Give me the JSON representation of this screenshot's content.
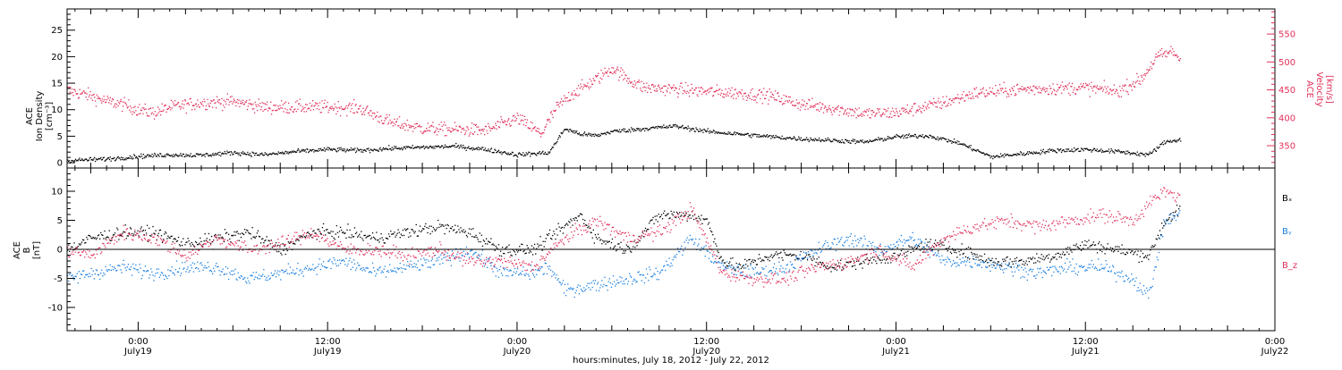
{
  "colors": {
    "black": "#000000",
    "red": "#e0305a",
    "blue": "#1a7fe0"
  },
  "x_axis": {
    "label": "hours:minutes, July 18, 2012 - July 22, 2012",
    "range_hours": [
      -4.5,
      72
    ],
    "ticks": [
      {
        "hours": 0,
        "time": "0:00",
        "date": "July19"
      },
      {
        "hours": 12,
        "time": "12:00",
        "date": "July19"
      },
      {
        "hours": 24,
        "time": "0:00",
        "date": "July20"
      },
      {
        "hours": 36,
        "time": "12:00",
        "date": "July20"
      },
      {
        "hours": 48,
        "time": "0:00",
        "date": "July21"
      },
      {
        "hours": 60,
        "time": "12:00",
        "date": "July21"
      },
      {
        "hours": 72,
        "time": "0:00",
        "date": "July22"
      }
    ]
  },
  "chart_data": [
    {
      "type": "scatter",
      "panel": "top",
      "left_axis": {
        "label_lines": [
          "ACE",
          "Ion Density",
          "[cm⁻³]"
        ],
        "range": [
          -1,
          29
        ],
        "ticks": [
          "0",
          "5",
          "10",
          "15",
          "20",
          "25"
        ]
      },
      "right_axis": {
        "label_lines": [
          "ACE",
          "Velocity",
          "[km/s]"
        ],
        "range": [
          310,
          595
        ],
        "ticks": [
          "350",
          "400",
          "450",
          "500",
          "550"
        ]
      },
      "series": [
        {
          "axis": "left",
          "color": "#000000",
          "x": [
            -4.5,
            -2,
            0,
            2,
            4,
            6,
            8,
            10,
            12,
            14,
            16,
            18,
            20,
            22,
            24,
            26,
            27,
            28,
            29,
            30,
            32,
            34,
            36,
            38,
            40,
            42,
            44,
            46,
            48,
            50,
            51,
            52,
            54,
            56,
            58,
            60,
            62,
            64,
            65,
            66
          ],
          "y": [
            0.5,
            0.8,
            1.3,
            1.6,
            1.5,
            2.0,
            1.6,
            2.2,
            2.6,
            2.4,
            2.8,
            3.0,
            3.2,
            2.6,
            1.6,
            2.0,
            6.5,
            5.5,
            5.2,
            6.0,
            6.5,
            7.0,
            6.0,
            5.5,
            5.0,
            4.6,
            4.3,
            4.0,
            5.0,
            5.2,
            4.5,
            3.8,
            1.2,
            1.8,
            2.4,
            2.6,
            2.2,
            1.6,
            4.0,
            4.5
          ]
        },
        {
          "axis": "right",
          "color": "#e0305a",
          "x": [
            -4.5,
            -3,
            -2,
            -1,
            0,
            1,
            2,
            4,
            6,
            8,
            10,
            12,
            14,
            16,
            18,
            20,
            22,
            24,
            25.5,
            26.5,
            27.5,
            29,
            30,
            31,
            32,
            34,
            36,
            38,
            40,
            42,
            44,
            46,
            48,
            50,
            51,
            53,
            56,
            60,
            62,
            63.5,
            64.5,
            65.5,
            66
          ],
          "y": [
            450,
            440,
            430,
            425,
            415,
            410,
            420,
            428,
            430,
            420,
            420,
            420,
            418,
            392,
            382,
            380,
            378,
            400,
            372,
            420,
            445,
            470,
            490,
            470,
            455,
            452,
            448,
            445,
            440,
            425,
            418,
            408,
            410,
            422,
            428,
            445,
            452,
            455,
            448,
            470,
            510,
            520,
            505
          ]
        }
      ]
    },
    {
      "type": "scatter",
      "panel": "bottom",
      "left_axis": {
        "label_lines": [
          "ACE",
          "B",
          "[nT]"
        ],
        "range": [
          -14,
          14
        ],
        "ticks": [
          "-10",
          "-5",
          "0",
          "5",
          "10"
        ]
      },
      "legend": [
        "Bₓ",
        "Bᵧ",
        "B_z"
      ],
      "series": [
        {
          "name": "Bₓ",
          "color": "#000000",
          "x": [
            -4.5,
            -3,
            -1,
            1,
            3,
            5,
            7,
            9,
            11,
            13,
            15,
            17,
            19,
            21,
            23,
            25,
            27,
            28,
            29,
            31,
            33,
            35,
            36,
            37,
            38,
            40,
            42,
            44,
            46,
            48,
            50,
            52,
            54,
            56,
            58,
            60,
            62,
            64,
            65,
            66
          ],
          "y": [
            0,
            2,
            3,
            3,
            1,
            2,
            3,
            0,
            3,
            3,
            2,
            3,
            4,
            3,
            0,
            0,
            4,
            6,
            2,
            0,
            6,
            6,
            5,
            -2,
            -3,
            -1,
            -1,
            -3,
            -2,
            -1,
            1,
            0,
            -2,
            -2,
            -1,
            1,
            0,
            -1,
            5,
            7
          ]
        },
        {
          "name": "Bᵧ",
          "color": "#1a7fe0",
          "x": [
            -4.5,
            -3,
            -1,
            1,
            3,
            5,
            7,
            9,
            11,
            13,
            15,
            17,
            19,
            21,
            23,
            25,
            26,
            27,
            29,
            31,
            33,
            35,
            37,
            39,
            41,
            43,
            45,
            47,
            49,
            51,
            53,
            55,
            57,
            59,
            61,
            63,
            64,
            65,
            66
          ],
          "y": [
            -5,
            -4,
            -3,
            -4,
            -3,
            -3,
            -5,
            -4,
            -3,
            -2,
            -4,
            -3,
            -2,
            0,
            -4,
            -4,
            -3,
            -7,
            -6,
            -5,
            -4,
            2,
            -3,
            -4,
            -3,
            0,
            2,
            0,
            2,
            -2,
            -2,
            -3,
            -4,
            -3,
            -3,
            -5,
            -8,
            5,
            6
          ]
        },
        {
          "name": "B_z",
          "color": "#e0305a",
          "x": [
            -4.5,
            -3,
            -1,
            1,
            3,
            5,
            7,
            9,
            11,
            13,
            15,
            17,
            19,
            21,
            23,
            25,
            27,
            29,
            31,
            33,
            35,
            37,
            39,
            41,
            43,
            45,
            47,
            49,
            51,
            53,
            55,
            57,
            59,
            61,
            63,
            64,
            65,
            66
          ],
          "y": [
            0,
            -1,
            3,
            2,
            -1,
            2,
            0,
            1,
            3,
            0,
            0,
            -1,
            0,
            -2,
            -2,
            -3,
            2,
            5,
            2,
            3,
            7,
            -4,
            -5,
            -5,
            -3,
            -2,
            0,
            -3,
            2,
            4,
            5,
            4,
            5,
            6,
            5,
            8,
            10,
            9
          ]
        }
      ]
    }
  ]
}
